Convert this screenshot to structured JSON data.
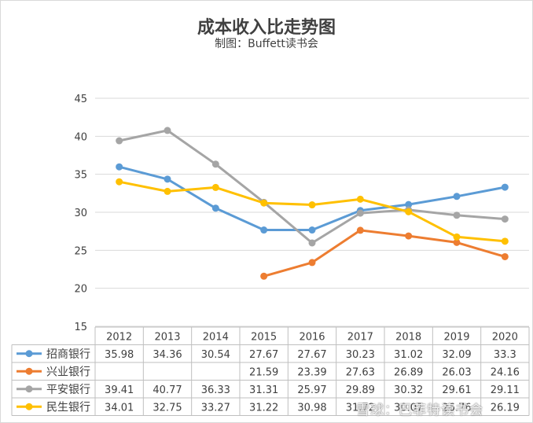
{
  "chart_data": {
    "type": "line",
    "title": "成本收入比走势图",
    "subtitle": "制图：Buffett读书会",
    "categories": [
      "2012",
      "2013",
      "2014",
      "2015",
      "2016",
      "2017",
      "2018",
      "2019",
      "2020"
    ],
    "ylim": [
      15,
      45
    ],
    "yticks": [
      15,
      20,
      25,
      30,
      35,
      40,
      45
    ],
    "grid": true,
    "legend": "data-table",
    "series": [
      {
        "name": "招商银行",
        "color": "#5b9bd5",
        "values": [
          35.98,
          34.36,
          30.54,
          27.67,
          27.67,
          30.23,
          31.02,
          32.09,
          33.3
        ],
        "labels": [
          "35.98",
          "34.36",
          "30.54",
          "27.67",
          "27.67",
          "30.23",
          "31.02",
          "32.09",
          "33.3"
        ]
      },
      {
        "name": "兴业银行",
        "color": "#ed7d31",
        "values": [
          null,
          null,
          null,
          21.59,
          23.39,
          27.63,
          26.89,
          26.03,
          24.16
        ],
        "labels": [
          "",
          "",
          "",
          "21.59",
          "23.39",
          "27.63",
          "26.89",
          "26.03",
          "24.16"
        ]
      },
      {
        "name": "平安银行",
        "color": "#a5a5a5",
        "values": [
          39.41,
          40.77,
          36.33,
          31.31,
          25.97,
          29.89,
          30.32,
          29.61,
          29.11
        ],
        "labels": [
          "39.41",
          "40.77",
          "36.33",
          "31.31",
          "25.97",
          "29.89",
          "30.32",
          "29.61",
          "29.11"
        ]
      },
      {
        "name": "民生银行",
        "color": "#ffc000",
        "values": [
          34.01,
          32.75,
          33.27,
          31.22,
          30.98,
          31.72,
          30.07,
          26.76,
          26.19
        ],
        "labels": [
          "34.01",
          "32.75",
          "33.27",
          "31.22",
          "30.98",
          "31.72",
          "30.07",
          "26.76",
          "26.19"
        ]
      }
    ]
  },
  "watermark": "雪球：巴菲特读书会"
}
